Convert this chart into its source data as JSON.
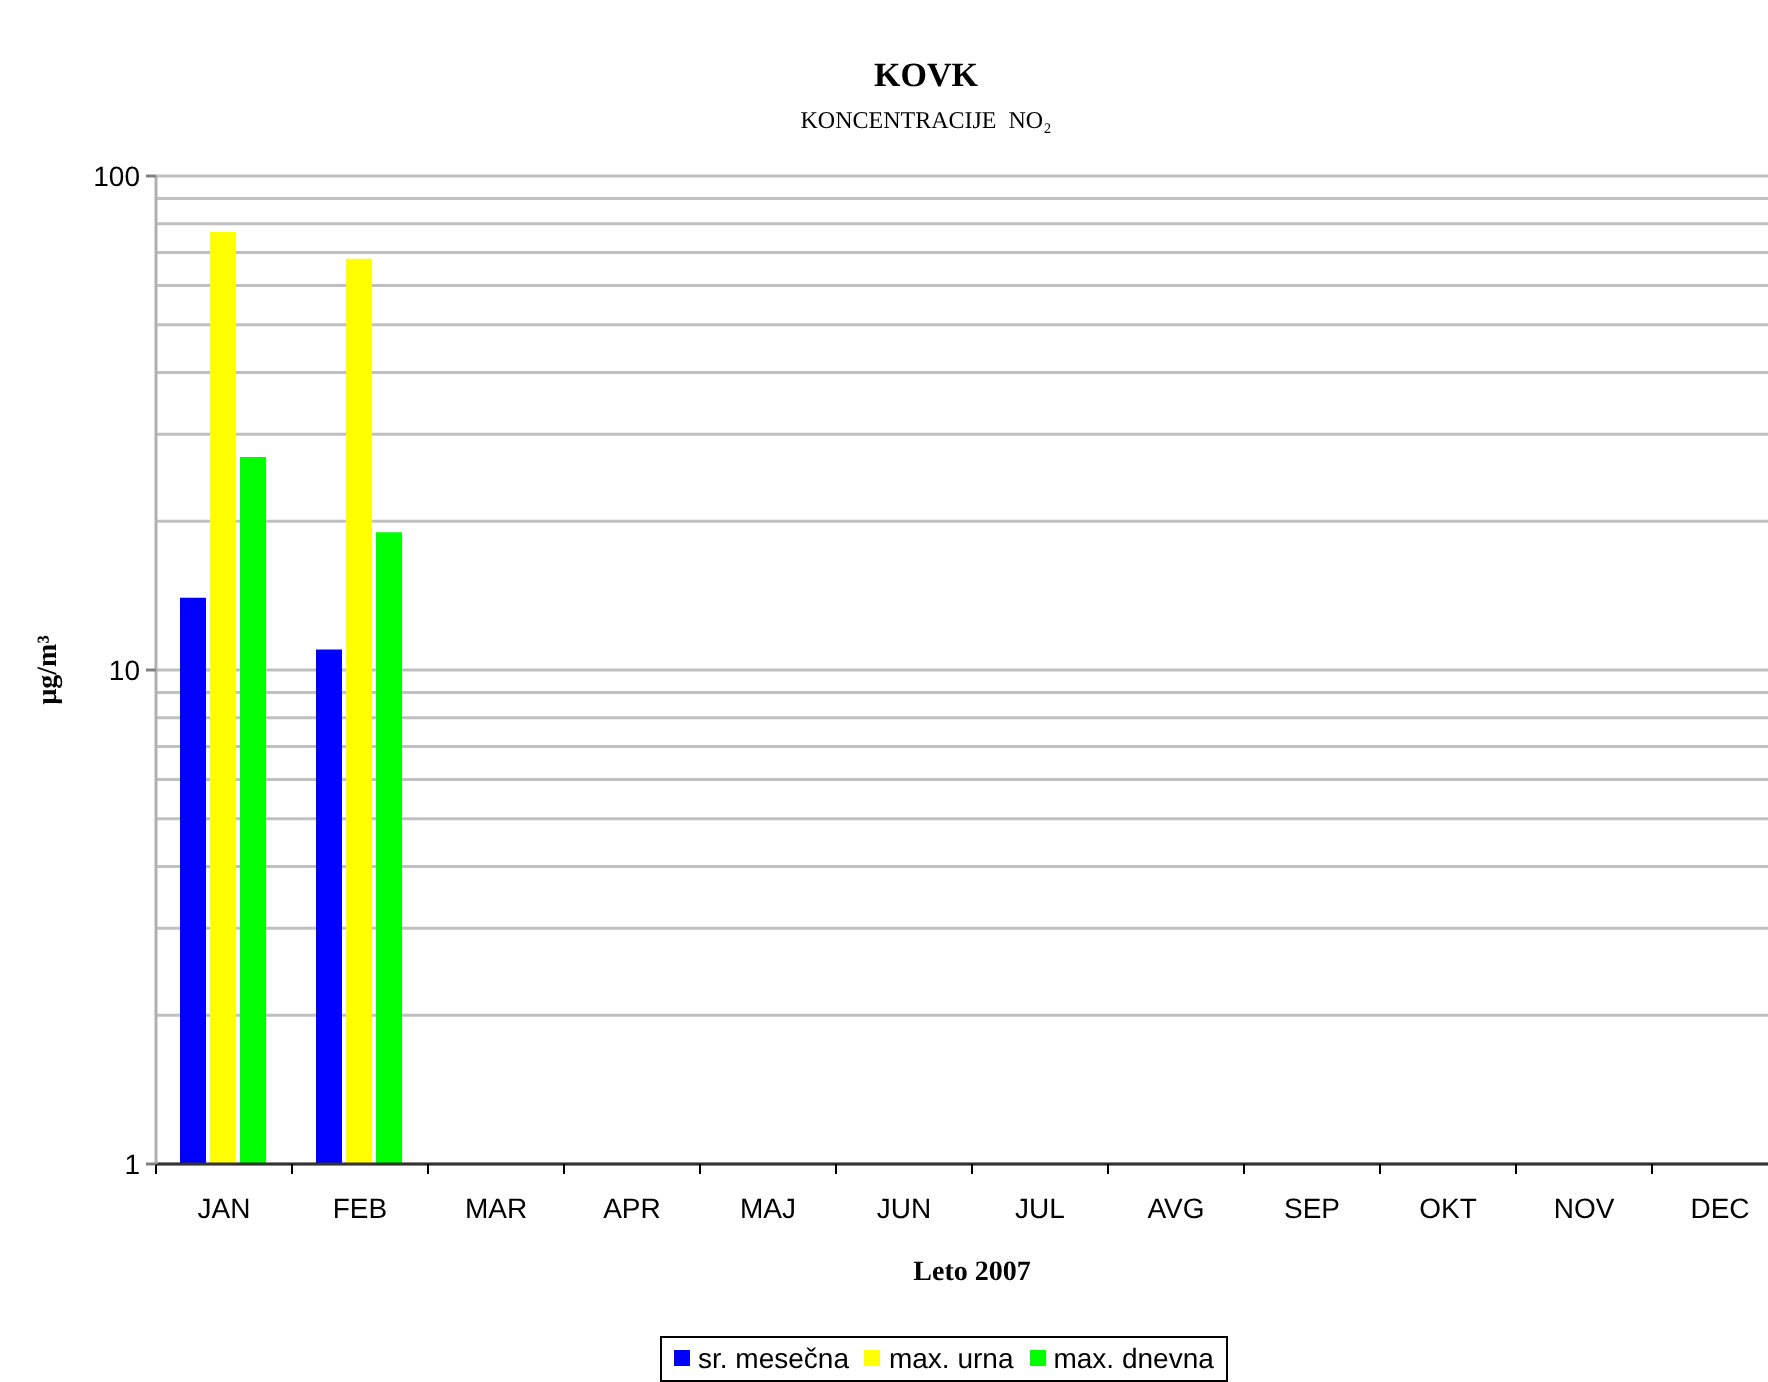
{
  "chart_data": {
    "type": "bar",
    "title": "KOVK",
    "subtitle": "KONCENTRACIJE  NO₂",
    "xlabel": "Leto 2007",
    "ylabel": "µg/m³",
    "categories": [
      "JAN",
      "FEB",
      "MAR",
      "APR",
      "MAJ",
      "JUN",
      "JUL",
      "AVG",
      "SEP",
      "OKT",
      "NOV",
      "DEC"
    ],
    "series": [
      {
        "name": "sr. mesečna",
        "color": "#0000ff",
        "values": [
          14,
          11,
          null,
          null,
          null,
          null,
          null,
          null,
          null,
          null,
          null,
          null
        ]
      },
      {
        "name": "max. urna",
        "color": "#ffff00",
        "values": [
          77,
          68,
          null,
          null,
          null,
          null,
          null,
          null,
          null,
          null,
          null,
          null
        ]
      },
      {
        "name": "max. dnevna",
        "color": "#00ff00",
        "values": [
          27,
          19,
          null,
          null,
          null,
          null,
          null,
          null,
          null,
          null,
          null,
          null
        ]
      }
    ],
    "ylim": [
      1,
      100
    ],
    "yticks": [
      1,
      {
        "value": 2,
        "label": null
      },
      {
        "value": 3,
        "label": null
      },
      {
        "value": 4,
        "label": null
      },
      {
        "value": 5,
        "label": null
      },
      {
        "value": 6,
        "label": null
      },
      {
        "value": 7,
        "label": null
      },
      {
        "value": 8,
        "label": null
      },
      {
        "value": 9,
        "label": null
      },
      10,
      {
        "value": 20,
        "label": null
      },
      {
        "value": 30,
        "label": null
      },
      {
        "value": 40,
        "label": null
      },
      {
        "value": 50,
        "label": null
      },
      {
        "value": 60,
        "label": null
      },
      {
        "value": 70,
        "label": null
      },
      {
        "value": 80,
        "label": null
      },
      {
        "value": 90,
        "label": null
      },
      100
    ],
    "log": true,
    "grid": "y",
    "legend": "bottom"
  }
}
